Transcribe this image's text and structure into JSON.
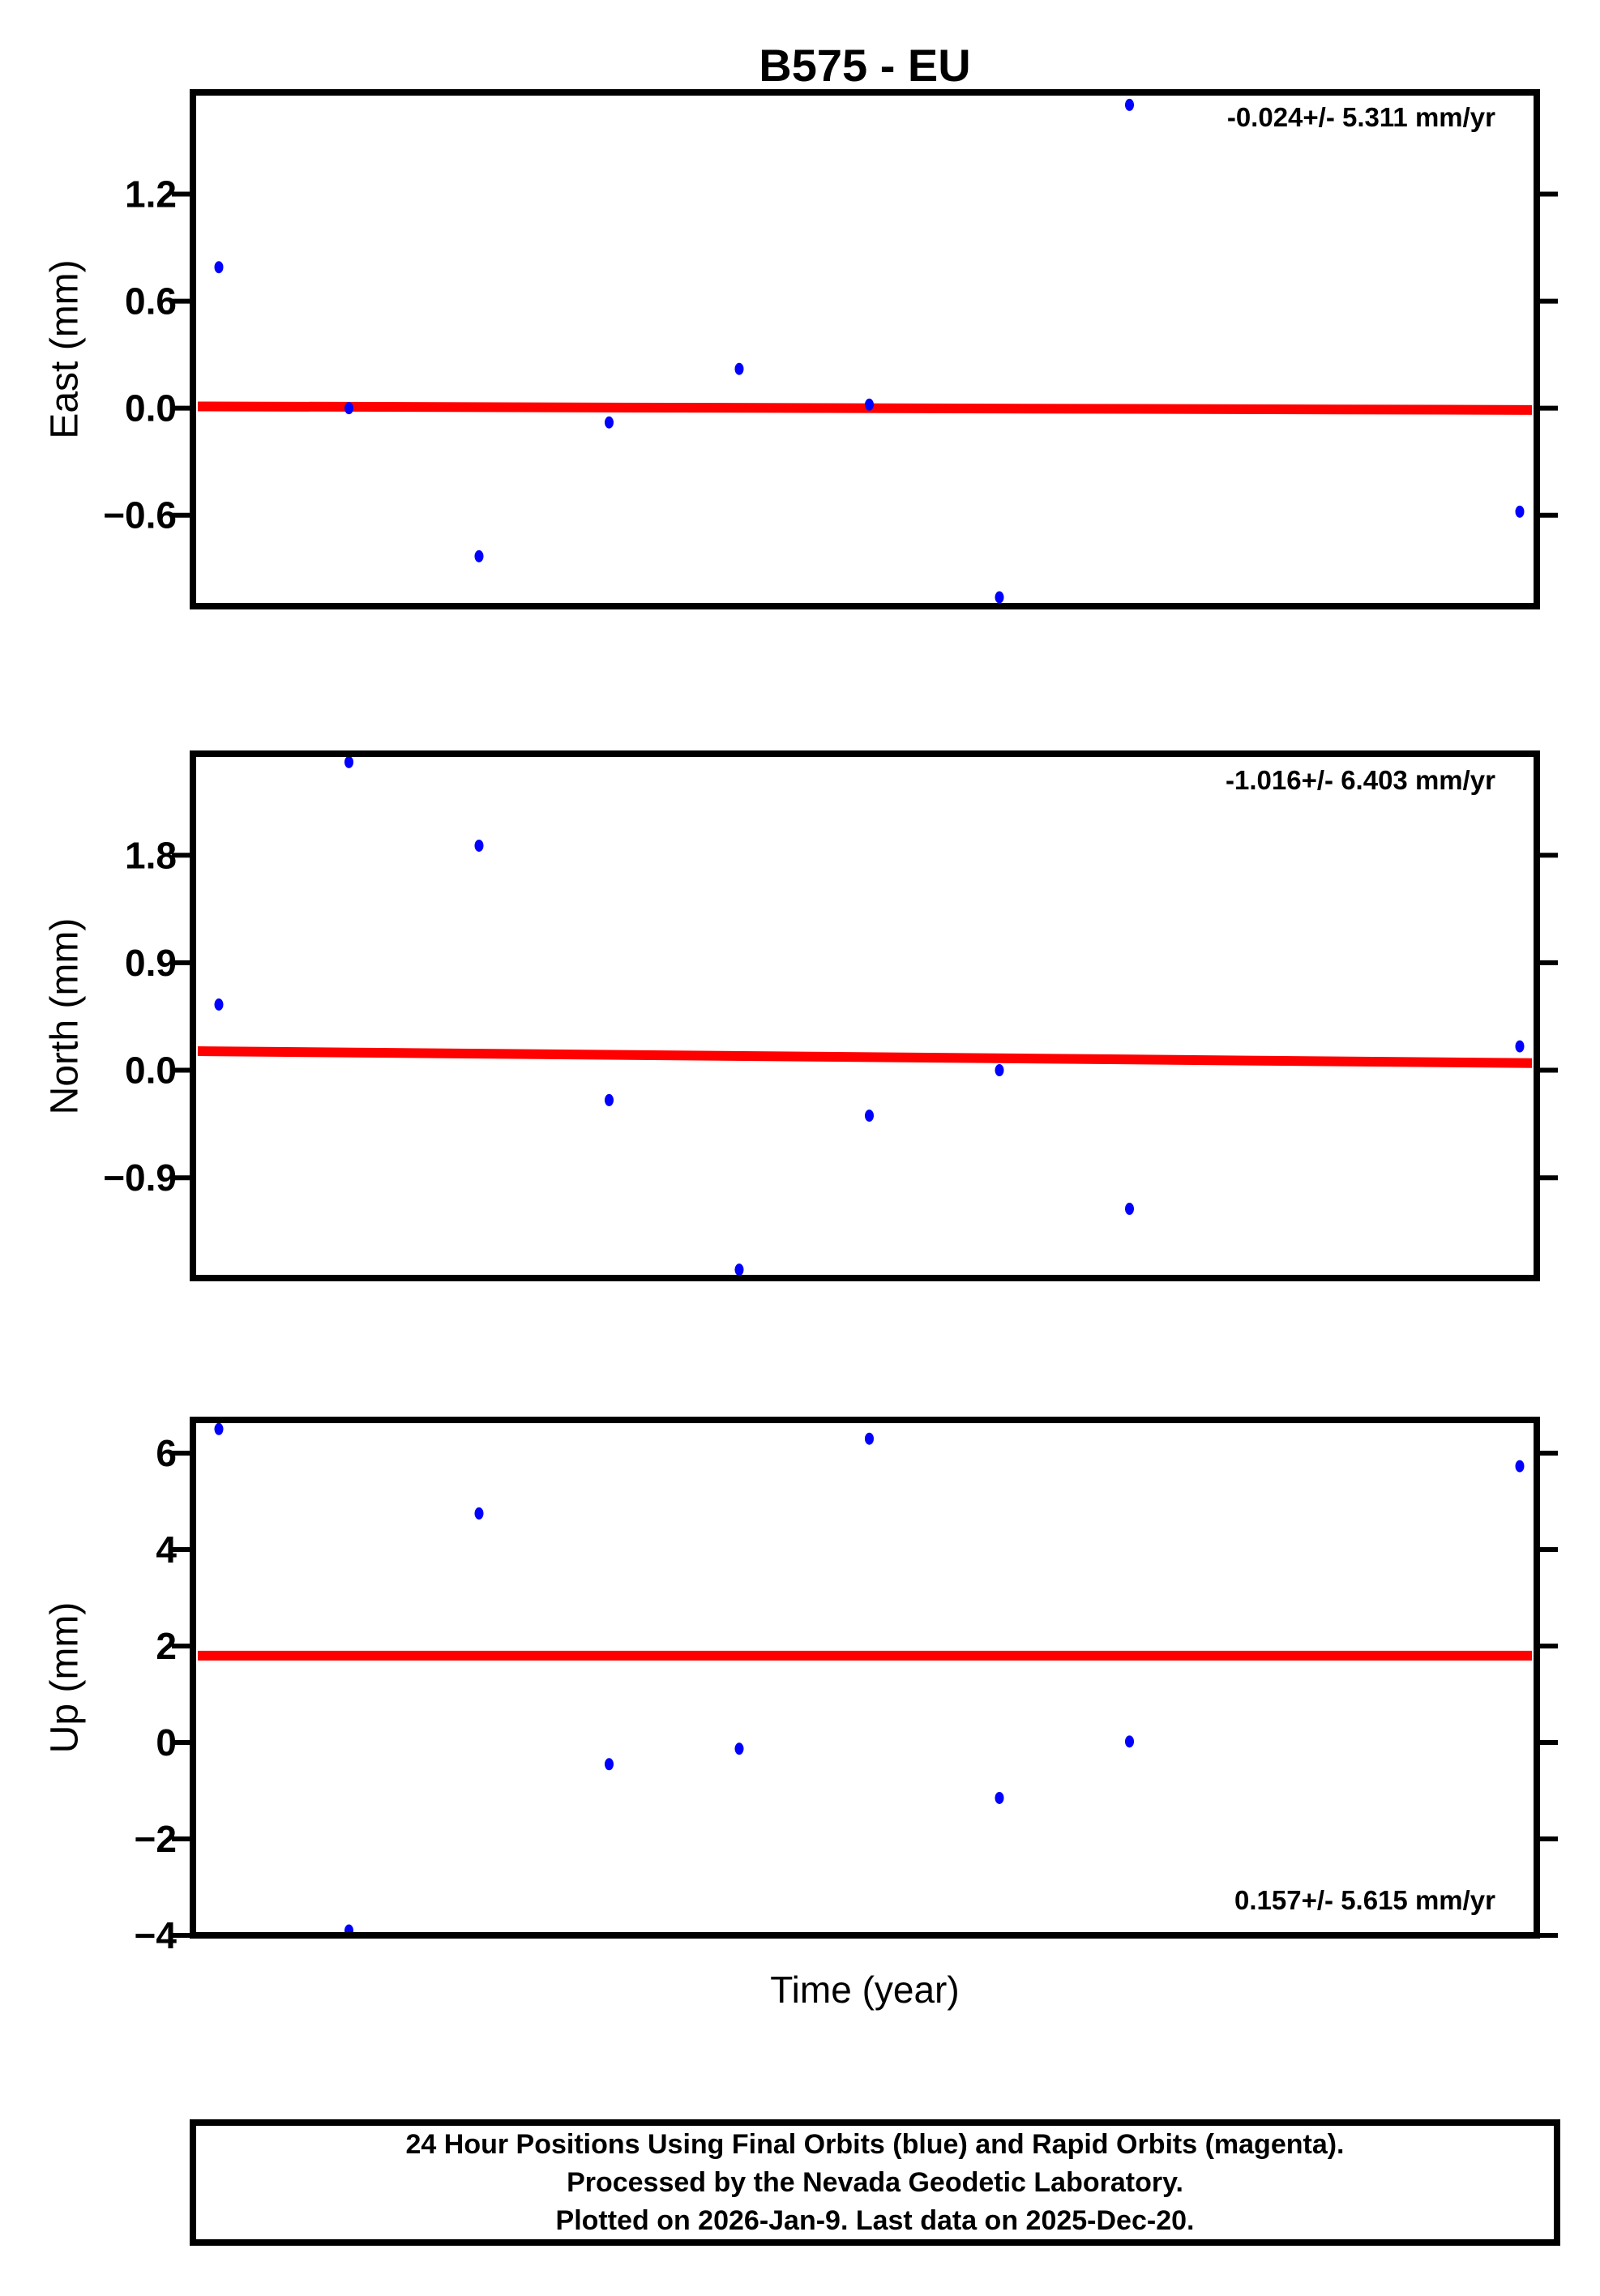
{
  "page": {
    "title": "B575 - EU",
    "xlabel": "Time (year)"
  },
  "caption": {
    "lines": [
      "24 Hour Positions Using Final Orbits (blue) and Rapid Orbits (magenta).",
      "Processed by the Nevada Geodetic Laboratory.",
      "Plotted on 2026-Jan-9. Last data on 2025-Dec-20."
    ]
  },
  "colors": {
    "point_blue": "#0000ff",
    "trend_red": "#ff0000",
    "axis_black": "#000000",
    "background": "#ffffff"
  },
  "chart_data": [
    {
      "type": "scatter",
      "component": "East",
      "ylabel": "East (mm)",
      "annotation": "-0.024+/- 5.311 mm/yr",
      "annotation_corner": "top-right",
      "x_index": [
        0,
        1,
        2,
        3,
        4,
        5,
        6,
        7,
        10
      ],
      "values_mm": [
        0.79,
        0.0,
        -0.83,
        -0.08,
        0.22,
        0.02,
        -1.06,
        1.7,
        -0.58
      ],
      "ytick_values": [
        1.2,
        0.6,
        0.0,
        -0.6
      ],
      "ytick_labels": [
        "1.2",
        "0.6",
        "0.0",
        "−0.6"
      ],
      "ylim": [
        -1.11,
        1.77
      ],
      "trend_mm": {
        "left": 0.01,
        "right": -0.01
      },
      "grid": false,
      "legend": false
    },
    {
      "type": "scatter",
      "component": "North",
      "ylabel": "North (mm)",
      "annotation": "-1.016+/- 6.403 mm/yr",
      "annotation_corner": "top-right",
      "x_index": [
        0,
        1,
        2,
        3,
        4,
        5,
        6,
        7,
        10
      ],
      "values_mm": [
        0.55,
        2.58,
        1.88,
        -0.25,
        -1.67,
        -0.38,
        0.0,
        -1.16,
        0.2
      ],
      "ytick_values": [
        1.8,
        0.9,
        0.0,
        -0.9
      ],
      "ytick_labels": [
        "1.8",
        "0.9",
        "0.0",
        "−0.9"
      ],
      "ylim": [
        -1.74,
        2.65
      ],
      "trend_mm": {
        "left": 0.16,
        "right": 0.06
      },
      "grid": false,
      "legend": false
    },
    {
      "type": "scatter",
      "component": "Up",
      "ylabel": "Up (mm)",
      "annotation": "0.157+/- 5.615 mm/yr",
      "annotation_corner": "bottom-right",
      "x_index": [
        0,
        1,
        2,
        3,
        4,
        5,
        6,
        7,
        10
      ],
      "values_mm": [
        6.5,
        -3.9,
        4.75,
        -0.45,
        -0.13,
        6.3,
        -1.15,
        0.02,
        5.73
      ],
      "ytick_values": [
        6,
        4,
        2,
        0,
        -2,
        -4
      ],
      "ytick_labels": [
        "6",
        "4",
        "2",
        "0",
        "−2",
        "−4"
      ],
      "ylim": [
        -4.0,
        6.69
      ],
      "trend_mm": {
        "left": 1.8,
        "right": 1.8
      },
      "grid": false,
      "legend": false
    }
  ]
}
